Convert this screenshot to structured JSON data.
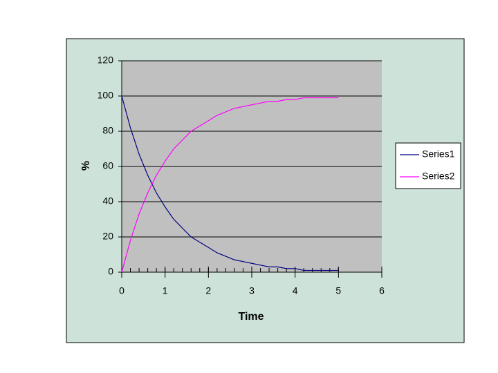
{
  "chart_data": {
    "type": "line",
    "x_label": "Time",
    "y_label": "%",
    "x": [
      0,
      0.2,
      0.4,
      0.6,
      0.8,
      1,
      1.2,
      1.4,
      1.6,
      1.8,
      2,
      2.2,
      2.4,
      2.6,
      2.8,
      3,
      3.2,
      3.4,
      3.6,
      3.8,
      4,
      4.2,
      4.4,
      4.6,
      4.8,
      5
    ],
    "series": [
      {
        "name": "Series1",
        "color": "#000080",
        "values": [
          100,
          82,
          67,
          55,
          45,
          37,
          30,
          25,
          20,
          17,
          14,
          11,
          9,
          7,
          6,
          5,
          4,
          3,
          3,
          2,
          2,
          1,
          1,
          1,
          1,
          1
        ]
      },
      {
        "name": "Series2",
        "color": "#ff00ff",
        "values": [
          0,
          18,
          33,
          45,
          55,
          63,
          70,
          75,
          80,
          83,
          86,
          89,
          91,
          93,
          94,
          95,
          96,
          97,
          97,
          98,
          98,
          99,
          99,
          99,
          99,
          99
        ]
      }
    ],
    "xlim": [
      0,
      6
    ],
    "xticks": [
      0,
      1,
      2,
      3,
      4,
      5,
      6
    ],
    "ylim": [
      0,
      120
    ],
    "yticks": [
      0,
      20,
      40,
      60,
      80,
      100,
      120
    ],
    "grid": true,
    "legend": "right"
  }
}
